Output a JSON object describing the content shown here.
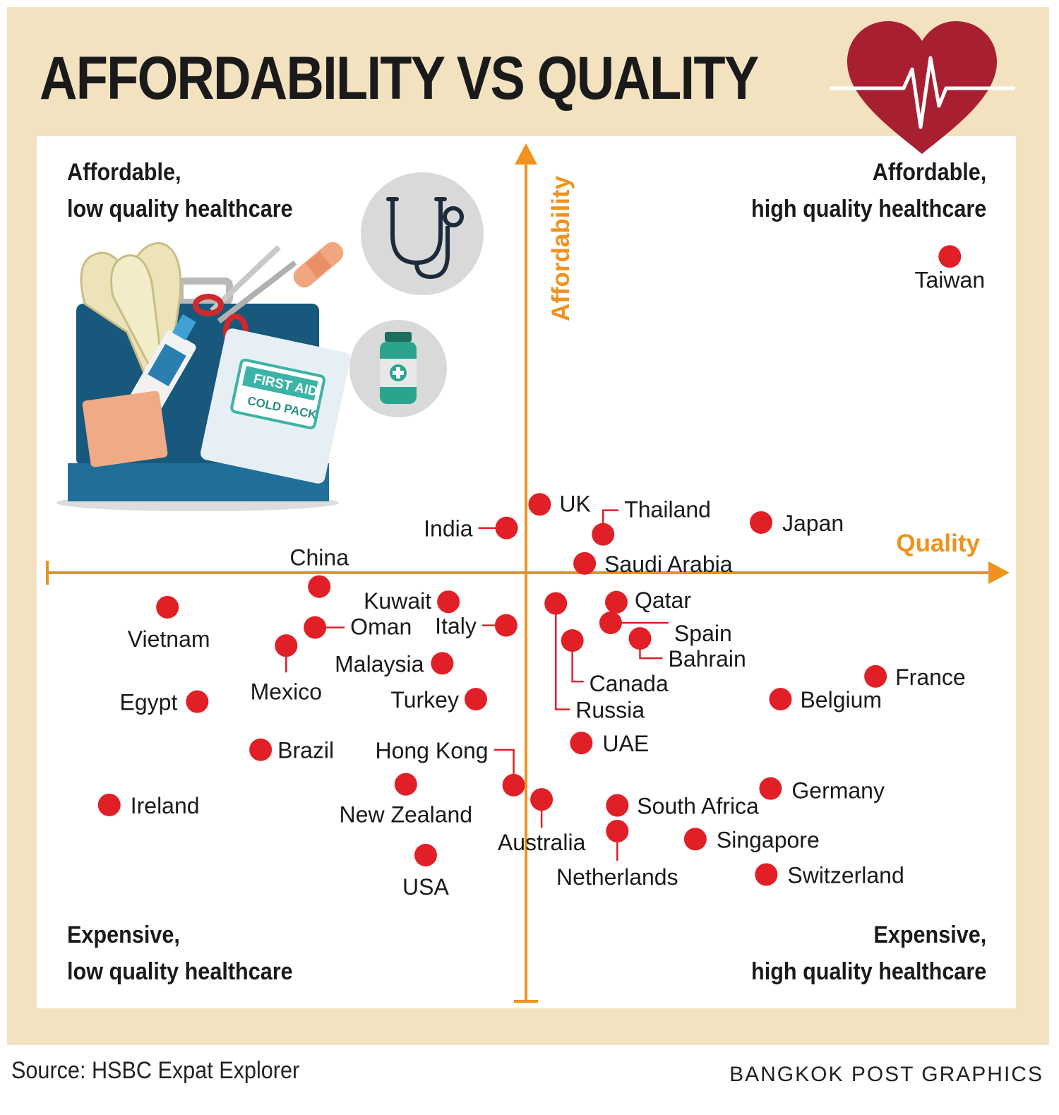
{
  "title": "AFFORDABILITY VS QUALITY",
  "quadrants": {
    "top_left": [
      "Affordable,",
      "low quality healthcare"
    ],
    "top_right": [
      "Affordable,",
      "high quality healthcare"
    ],
    "bottom_left": [
      "Expensive,",
      "low quality healthcare"
    ],
    "bottom_right": [
      "Expensive,",
      "high quality healthcare"
    ]
  },
  "source": "Source: HSBC Expat Explorer",
  "credit": "BANGKOK POST GRAPHICS",
  "kit": {
    "first_aid_label": "FIRST AID",
    "cold_pack_label": "COLD PACK"
  },
  "colors": {
    "axis": "#f0921e",
    "dot": "#e11f26",
    "frame": "#f2e2c0",
    "heart": "#a91f32",
    "kit_box": "#17587c"
  },
  "icons": [
    "heart-pulse-icon",
    "stethoscope-icon",
    "medicine-bottle-icon",
    "first-aid-kit-icon"
  ],
  "chart_data": {
    "type": "scatter",
    "xlabel": "Quality",
    "ylabel": "Affordability",
    "xlim": [
      -100,
      100
    ],
    "ylim": [
      -100,
      100
    ],
    "grid": false,
    "points": [
      {
        "label": "Taiwan",
        "x": 89.6,
        "y": 75.0
      },
      {
        "label": "UK",
        "x": 2.9,
        "y": 16.2
      },
      {
        "label": "Thailand",
        "x": 16.3,
        "y": 9.1
      },
      {
        "label": "India",
        "x": -4.1,
        "y": 10.6
      },
      {
        "label": "Japan",
        "x": 49.7,
        "y": 11.9
      },
      {
        "label": "Saudi Arabia",
        "x": 12.4,
        "y": 2.2
      },
      {
        "label": "China",
        "x": -43.7,
        "y": -3.3
      },
      {
        "label": "Vietnam",
        "x": -75.8,
        "y": -8.2
      },
      {
        "label": "Kuwait",
        "x": -16.4,
        "y": -6.9
      },
      {
        "label": "Qatar",
        "x": 19.1,
        "y": -7.0
      },
      {
        "label": "Spain",
        "x": 17.9,
        "y": -11.9
      },
      {
        "label": "Oman",
        "x": -44.6,
        "y": -13.0
      },
      {
        "label": "Italy",
        "x": -4.2,
        "y": -12.5
      },
      {
        "label": "Mexico",
        "x": -50.7,
        "y": -17.3
      },
      {
        "label": "Bahrain",
        "x": 24.1,
        "y": -15.6
      },
      {
        "label": "Canada",
        "x": 9.8,
        "y": -16.1
      },
      {
        "label": "Russia",
        "x": 6.3,
        "y": -7.3
      },
      {
        "label": "Malaysia",
        "x": -17.7,
        "y": -21.5
      },
      {
        "label": "France",
        "x": 73.9,
        "y": -24.6
      },
      {
        "label": "Egypt",
        "x": -69.5,
        "y": -30.6
      },
      {
        "label": "Turkey",
        "x": -10.6,
        "y": -30.0
      },
      {
        "label": "Belgium",
        "x": 53.8,
        "y": -30.0
      },
      {
        "label": "Brazil",
        "x": -56.1,
        "y": -42.0
      },
      {
        "label": "UAE",
        "x": 11.7,
        "y": -40.4
      },
      {
        "label": "Hong Kong",
        "x": -2.6,
        "y": -50.4
      },
      {
        "label": "New Zealand",
        "x": -25.4,
        "y": -50.2
      },
      {
        "label": "Australia",
        "x": 3.3,
        "y": -53.8
      },
      {
        "label": "Ireland",
        "x": -88.1,
        "y": -55.1
      },
      {
        "label": "South Africa",
        "x": 19.3,
        "y": -55.2
      },
      {
        "label": "Germany",
        "x": 51.7,
        "y": -51.2
      },
      {
        "label": "Netherlands",
        "x": 19.3,
        "y": -61.3
      },
      {
        "label": "Singapore",
        "x": 35.8,
        "y": -63.2
      },
      {
        "label": "USA",
        "x": -21.2,
        "y": -67.0
      },
      {
        "label": "Switzerland",
        "x": 50.8,
        "y": -71.6
      }
    ]
  }
}
